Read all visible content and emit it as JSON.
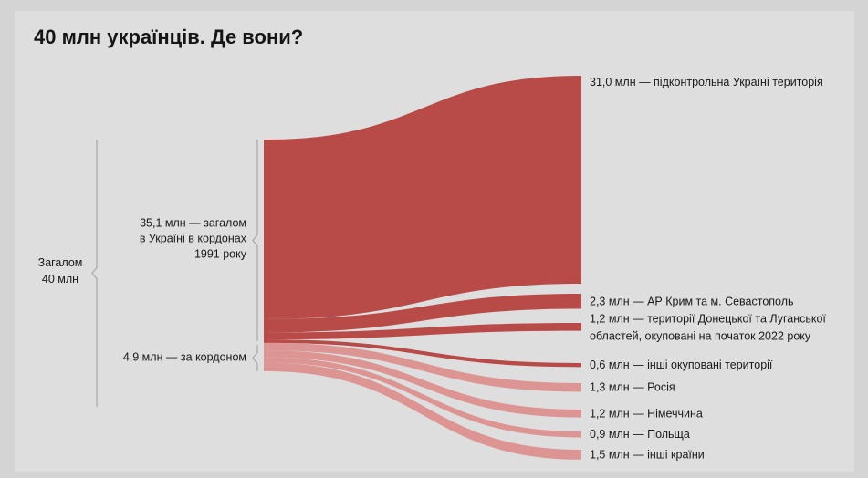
{
  "chart_data": {
    "type": "sankey",
    "title": "40 млн українців. Де вони?",
    "total": {
      "label_line1": "Загалом",
      "label_line2": "40 млн",
      "value": 40.0
    },
    "groups": [
      {
        "name": "in_ukraine",
        "label_lines": [
          "35,1 млн — загалом",
          "в Україні в кордонах",
          "1991 року"
        ],
        "value": 35.1,
        "color": "#b84a47"
      },
      {
        "name": "abroad",
        "label_lines": [
          "4,9 млн — за кордоном"
        ],
        "value": 4.9,
        "color": "#dc9593"
      }
    ],
    "flows": [
      {
        "group": 0,
        "value": 31.0,
        "label_lines": [
          "31,0 млн — підконтрольна Україні територія"
        ]
      },
      {
        "group": 0,
        "value": 2.3,
        "label_lines": [
          "2,3 млн — АР Крим та м. Севастополь"
        ]
      },
      {
        "group": 0,
        "value": 1.2,
        "label_lines": [
          "1,2 млн — території Донецької та Луганської",
          "областей, окуповані на початок 2022 року"
        ]
      },
      {
        "group": 0,
        "value": 0.6,
        "label_lines": [
          "0,6 млн — інші окуповані території"
        ]
      },
      {
        "group": 1,
        "value": 1.3,
        "label_lines": [
          "1,3 млн — Росія"
        ]
      },
      {
        "group": 1,
        "value": 1.2,
        "label_lines": [
          "1,2 млн — Німеччина"
        ]
      },
      {
        "group": 1,
        "value": 0.9,
        "label_lines": [
          "0,9 млн — Польща"
        ]
      },
      {
        "group": 1,
        "value": 1.5,
        "label_lines": [
          "1,5 млн — інші країни"
        ]
      }
    ]
  }
}
